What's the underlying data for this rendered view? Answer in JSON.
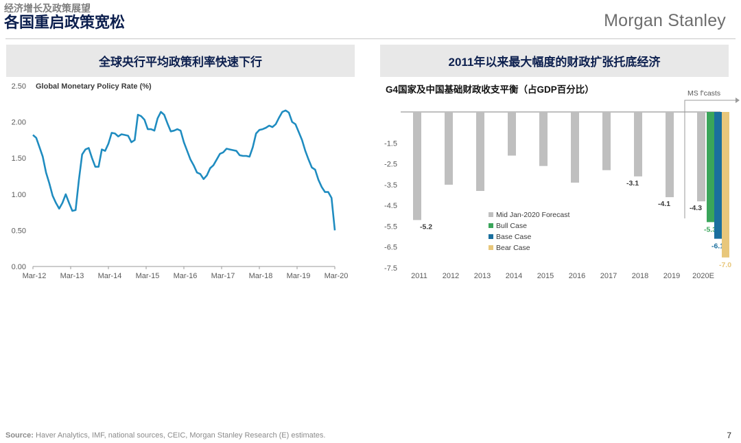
{
  "header": {
    "supertitle": "经济增长及政策展望",
    "title": "各国重启政策宽松",
    "brand": "Morgan Stanley"
  },
  "left_panel": {
    "heading": "全球央行平均政策利率快速下行"
  },
  "right_panel": {
    "heading": "2011年以来最大幅度的财政扩张托底经济"
  },
  "footer": {
    "source_label": "Source:",
    "source_text": " Haver Analytics, IMF, national sources, CEIC, Morgan Stanley Research (E) estimates.",
    "page_number": "7"
  },
  "colors": {
    "line": "#1f8cc0",
    "gray_bar": "#bfbfbf",
    "bull": "#3aa55a",
    "base": "#1a6f9e",
    "bear": "#e8c77b",
    "navy": "#0c1f4e"
  },
  "chart_data": [
    {
      "type": "line",
      "title": "Global Monetary Policy Rate (%)",
      "ylim": [
        0.0,
        2.5
      ],
      "yticks": [
        "0.00",
        "0.50",
        "1.00",
        "1.50",
        "2.00",
        "2.50"
      ],
      "xlabels": [
        "Mar-12",
        "Mar-13",
        "Mar-14",
        "Mar-15",
        "Mar-16",
        "Mar-17",
        "Mar-18",
        "Mar-19",
        "Mar-20"
      ],
      "series": [
        {
          "values": [
            1.82,
            1.78,
            1.65,
            1.52,
            1.3,
            1.15,
            0.98,
            0.88,
            0.8,
            0.88,
            1.0,
            0.88,
            0.77,
            0.78,
            1.2,
            1.55,
            1.62,
            1.64,
            1.5,
            1.38,
            1.38,
            1.62,
            1.6,
            1.7,
            1.85,
            1.84,
            1.8,
            1.83,
            1.82,
            1.81,
            1.72,
            1.75,
            2.1,
            2.08,
            2.03,
            1.9,
            1.9,
            1.88,
            2.05,
            2.14,
            2.1,
            1.98,
            1.87,
            1.88,
            1.9,
            1.88,
            1.72,
            1.6,
            1.48,
            1.4,
            1.3,
            1.28,
            1.21,
            1.26,
            1.36,
            1.4,
            1.48,
            1.56,
            1.58,
            1.63,
            1.62,
            1.61,
            1.6,
            1.54,
            1.53,
            1.53,
            1.52,
            1.65,
            1.84,
            1.89,
            1.9,
            1.92,
            1.95,
            1.93,
            1.97,
            2.06,
            2.14,
            2.16,
            2.13,
            2.0,
            1.97,
            1.86,
            1.75,
            1.6,
            1.48,
            1.37,
            1.34,
            1.2,
            1.1,
            1.03,
            1.03,
            0.95,
            0.5
          ]
        }
      ]
    },
    {
      "type": "bar",
      "title": "G4国家及中国基础财政收支平衡（占GDP百分比）",
      "annotation": "MS f'casts",
      "ylim": [
        -7.5,
        0
      ],
      "yticks": [
        "-1.5",
        "-2.5",
        "-3.5",
        "-4.5",
        "-5.5",
        "-6.5",
        "-7.5"
      ],
      "categories": [
        "2011",
        "2012",
        "2013",
        "2014",
        "2015",
        "2016",
        "2017",
        "2018",
        "2019",
        "2020E"
      ],
      "values": [
        -5.2,
        -3.5,
        -3.8,
        -2.1,
        -2.6,
        -3.4,
        -2.8,
        -3.1,
        -4.1,
        -4.3
      ],
      "data_labels": [
        "-5.2",
        "",
        "",
        "",
        "",
        "",
        "",
        "-3.1",
        "-4.1",
        "-4.3"
      ],
      "series": [
        {
          "name": "Mid Jan-2020 Forecast",
          "values": [
            -5.2,
            -3.5,
            -3.8,
            -2.1,
            -2.6,
            -3.4,
            -2.8,
            -3.1,
            -4.1,
            -4.3
          ]
        },
        {
          "name": "Bull Case",
          "values": [
            null,
            null,
            null,
            null,
            null,
            null,
            null,
            null,
            null,
            -5.3
          ],
          "label": "-5.3"
        },
        {
          "name": "Base Case",
          "values": [
            null,
            null,
            null,
            null,
            null,
            null,
            null,
            null,
            null,
            -6.1
          ],
          "label": "-6.1"
        },
        {
          "name": "Bear Case",
          "values": [
            null,
            null,
            null,
            null,
            null,
            null,
            null,
            null,
            null,
            -7.0
          ],
          "label": "-7.0"
        }
      ],
      "legend_position": "lower-middle"
    }
  ]
}
